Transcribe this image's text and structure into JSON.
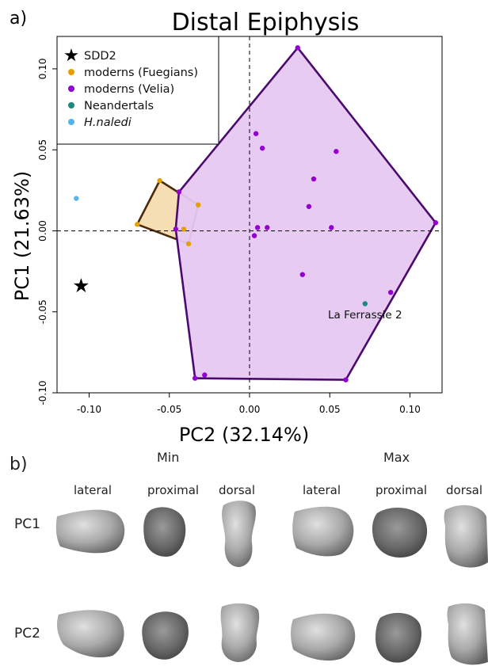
{
  "panel_a_label": "a)",
  "panel_b_label": "b)",
  "chart_data": {
    "type": "scatter",
    "title": "Distal Epiphysis",
    "xlabel": "PC2 (32.14%)",
    "ylabel": "PC1 (21.63%)",
    "xlim": [
      -0.12,
      0.12
    ],
    "ylim": [
      -0.1,
      0.12
    ],
    "x_ticks": [
      "-0.10",
      "-0.05",
      "0.00",
      "0.05",
      "0.10"
    ],
    "y_ticks": [
      "-0.10",
      "-0.05",
      "0.00",
      "0.05",
      "0.10"
    ],
    "grid": false,
    "zero_lines": true,
    "legend_position": "top-left",
    "series": [
      {
        "name": "SDD2",
        "color": "#000000",
        "marker": "star",
        "points": [
          [
            -0.105,
            -0.034
          ]
        ]
      },
      {
        "name": "moderns (Fuegians)",
        "color": "#e69f00",
        "marker": "circle",
        "hull_fill": "#f5dcb0",
        "hull_stroke": "#4a2a0a",
        "points": [
          [
            -0.07,
            0.004
          ],
          [
            -0.056,
            0.031
          ],
          [
            -0.032,
            0.016
          ],
          [
            -0.038,
            -0.008
          ],
          [
            -0.041,
            0.001
          ]
        ]
      },
      {
        "name": "moderns (Velia)",
        "color": "#9400d3",
        "marker": "circle",
        "hull_fill": "#e6c8f2",
        "hull_stroke": "#4b0a6e",
        "points": [
          [
            0.03,
            0.113
          ],
          [
            0.116,
            0.005
          ],
          [
            0.06,
            -0.092
          ],
          [
            -0.034,
            -0.091
          ],
          [
            -0.044,
            0.024
          ],
          [
            0.004,
            0.06
          ],
          [
            0.008,
            0.051
          ],
          [
            0.054,
            0.049
          ],
          [
            0.04,
            0.032
          ],
          [
            0.037,
            0.015
          ],
          [
            0.005,
            0.002
          ],
          [
            0.011,
            0.002
          ],
          [
            0.051,
            0.002
          ],
          [
            0.003,
            -0.003
          ],
          [
            0.033,
            -0.027
          ],
          [
            0.088,
            -0.038
          ],
          [
            -0.028,
            -0.089
          ],
          [
            -0.046,
            0.001
          ]
        ]
      },
      {
        "name": "Neandertals",
        "color": "#1a8a7a",
        "marker": "circle",
        "points": [
          [
            0.072,
            -0.045
          ]
        ]
      },
      {
        "name": "H.naledi",
        "color": "#56b4e9",
        "marker": "circle",
        "points": [
          [
            -0.108,
            0.02
          ]
        ]
      }
    ],
    "annotations": [
      {
        "text": "La Ferrassie 2",
        "x": 0.072,
        "y": -0.052
      }
    ]
  },
  "panel_b": {
    "groups": [
      {
        "label": "Min"
      },
      {
        "label": "Max"
      }
    ],
    "views": [
      "lateral",
      "proximal",
      "dorsal",
      "lateral",
      "proximal",
      "dorsal"
    ],
    "rows": [
      {
        "label": "PC1"
      },
      {
        "label": "PC2"
      }
    ]
  }
}
